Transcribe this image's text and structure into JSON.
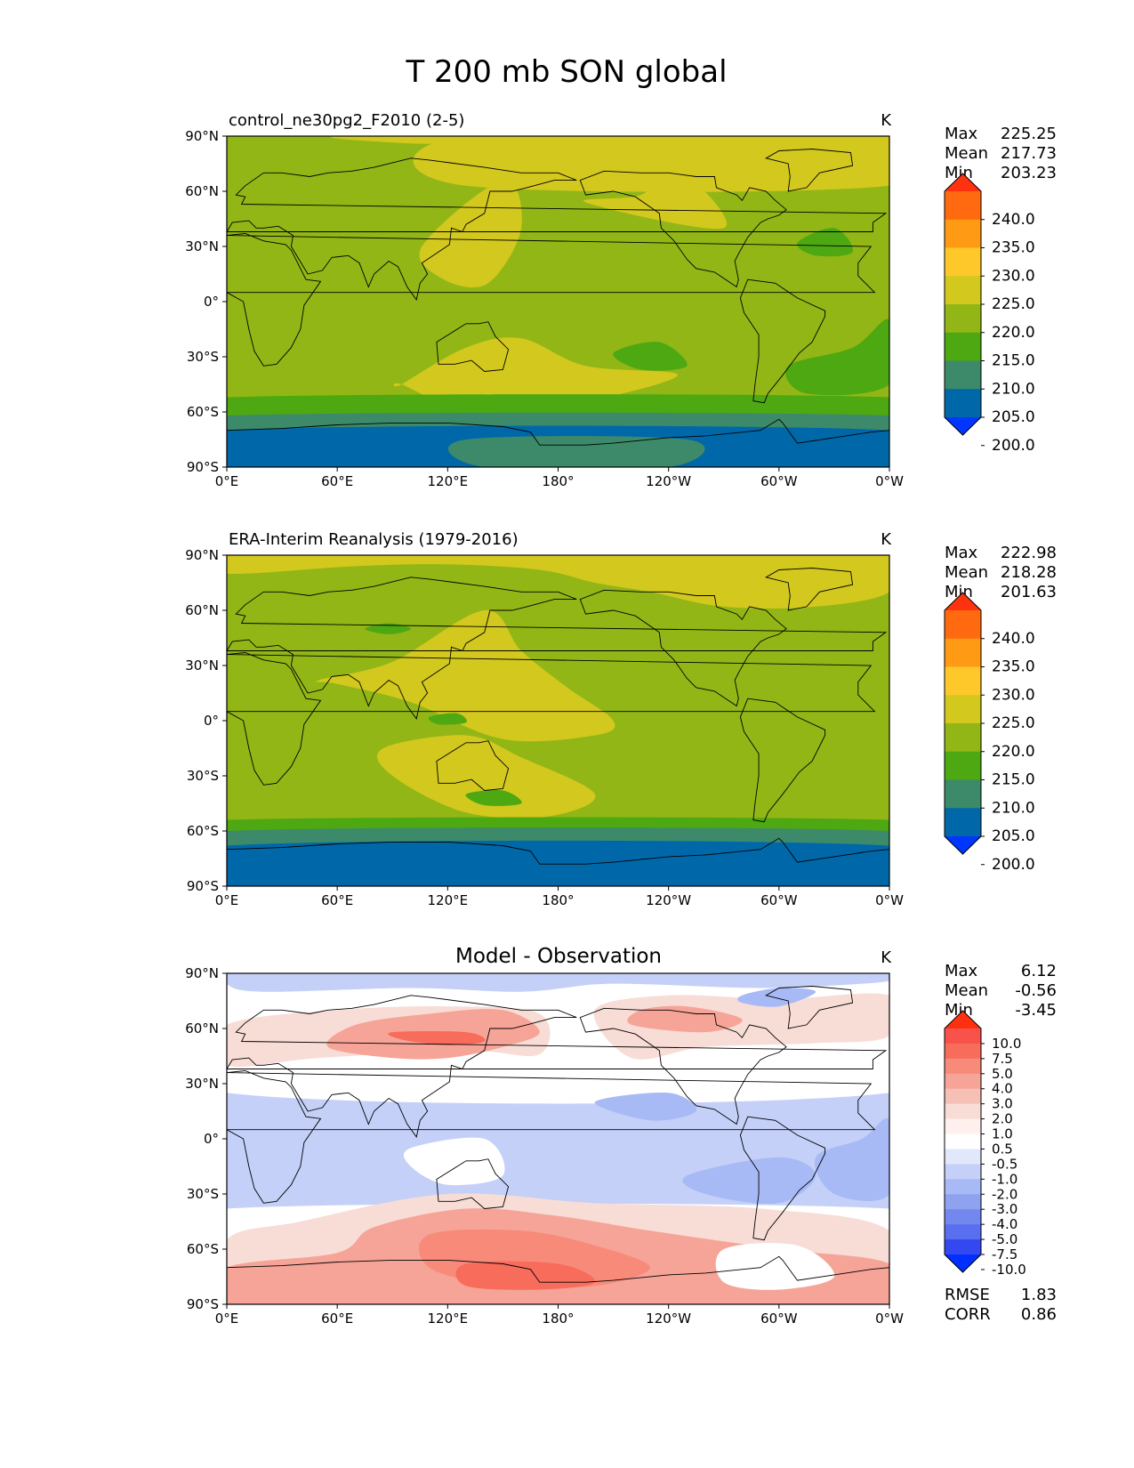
{
  "figure": {
    "title": "T 200 mb SON global"
  },
  "chart_data": [
    {
      "type": "heatmap",
      "panel": "test",
      "title": "control_ne30pg2_F2010 (2-5)",
      "units": "K",
      "stats": [
        {
          "label": "Max",
          "value": "225.25"
        },
        {
          "label": "Mean",
          "value": "217.73"
        },
        {
          "label": "Min",
          "value": "203.23"
        }
      ],
      "xlim": [
        0,
        360
      ],
      "ylim": [
        -90,
        90
      ],
      "xticks": [
        "0°E",
        "60°E",
        "120°E",
        "180°",
        "120°W",
        "60°W",
        "0°W"
      ],
      "yticks": [
        "90°N",
        "60°N",
        "30°N",
        "0°",
        "30°S",
        "60°S",
        "90°S"
      ],
      "colorbar": {
        "levels": [
          "240.0",
          "235.0",
          "230.0",
          "225.0",
          "220.0",
          "215.0",
          "210.0",
          "205.0",
          "200.0"
        ],
        "colors": [
          "#ff3210",
          "#ff6a10",
          "#ff9a14",
          "#ffc82a",
          "#d2c81e",
          "#92b616",
          "#4da812",
          "#3c8a6a",
          "#0068a8",
          "#0036ff"
        ],
        "extend": "both"
      },
      "background": "#92b616",
      "fields": [
        {
          "color": "#d2c81e",
          "lon": [
            130,
            360,
            360,
            130
          ],
          "lat": [
            63,
            63,
            90,
            90
          ]
        },
        {
          "color": "#d2c81e",
          "lon": [
            62,
            100,
            140,
            170,
            200,
            210,
            230
          ],
          "lat": [
            90,
            86,
            86,
            84,
            84,
            88,
            90
          ]
        },
        {
          "color": "#d2c81e",
          "lon": [
            195,
            225,
            245,
            270
          ],
          "lat": [
            54,
            58,
            72,
            40
          ]
        },
        {
          "color": "#d2c81e",
          "lon": [
            106,
            150,
            160,
            142,
            118
          ],
          "lat": [
            30,
            66,
            40,
            10,
            12
          ]
        },
        {
          "color": "#d2c81e",
          "lon": [
            95,
            130,
            160,
            195,
            245,
            190,
            130,
            95
          ],
          "lat": [
            -45,
            -25,
            -20,
            -35,
            -40,
            -55,
            -58,
            -45
          ]
        },
        {
          "color": "#ffc82a",
          "lon": [
            137,
            142,
            147,
            142
          ],
          "lat": [
            -52,
            -50,
            -52,
            -54
          ]
        },
        {
          "color": "#4da812",
          "lon": [
            310,
            330,
            340,
            320
          ],
          "lat": [
            32,
            40,
            27,
            25
          ]
        },
        {
          "color": "#4da812",
          "lon": [
            210,
            235,
            250,
            225
          ],
          "lat": [
            -28,
            -22,
            -35,
            -37
          ]
        },
        {
          "color": "#4da812",
          "lon": [
            305,
            340,
            360,
            360,
            315
          ],
          "lat": [
            -35,
            -25,
            -10,
            -45,
            -50
          ]
        },
        {
          "color": "#4da812",
          "lon": [
            0,
            360,
            360,
            0
          ],
          "lat": [
            -52,
            -52,
            -65,
            -65
          ]
        },
        {
          "color": "#3c8a6a",
          "lon": [
            0,
            360,
            360,
            0
          ],
          "lat": [
            -62,
            -62,
            -75,
            -75
          ]
        },
        {
          "color": "#0068a8",
          "lon": [
            0,
            360,
            360,
            0
          ],
          "lat": [
            -70,
            -70,
            -90,
            -90
          ]
        },
        {
          "color": "#3c8a6a",
          "lon": [
            130,
            250,
            240,
            140
          ],
          "lat": [
            -75,
            -75,
            -90,
            -90
          ]
        }
      ]
    },
    {
      "type": "heatmap",
      "panel": "reference",
      "title": "ERA-Interim Reanalysis (1979-2016)",
      "units": "K",
      "stats": [
        {
          "label": "Max",
          "value": "222.98"
        },
        {
          "label": "Mean",
          "value": "218.28"
        },
        {
          "label": "Min",
          "value": "201.63"
        }
      ],
      "xlim": [
        0,
        360
      ],
      "ylim": [
        -90,
        90
      ],
      "xticks": [
        "0°E",
        "60°E",
        "120°E",
        "180°",
        "120°W",
        "60°W",
        "0°W"
      ],
      "yticks": [
        "90°N",
        "60°N",
        "30°N",
        "0°",
        "30°S",
        "60°S",
        "90°S"
      ],
      "colorbar": {
        "levels": [
          "240.0",
          "235.0",
          "230.0",
          "225.0",
          "220.0",
          "215.0",
          "210.0",
          "205.0",
          "200.0"
        ],
        "colors": [
          "#ff3210",
          "#ff6a10",
          "#ff9a14",
          "#ffc82a",
          "#d2c81e",
          "#92b616",
          "#4da812",
          "#3c8a6a",
          "#0068a8",
          "#0036ff"
        ],
        "extend": "both"
      },
      "background": "#92b616",
      "fields": [
        {
          "color": "#d2c81e",
          "lon": [
            0,
            70,
            120,
            170,
            200,
            230,
            270,
            320,
            360,
            360,
            0
          ],
          "lat": [
            80,
            84,
            85,
            82,
            75,
            70,
            62,
            62,
            70,
            90,
            90
          ]
        },
        {
          "color": "#d2c81e",
          "lon": [
            50,
            90,
            140,
            160,
            185,
            210,
            200,
            150,
            100,
            60
          ],
          "lat": [
            22,
            32,
            60,
            38,
            18,
            0,
            -8,
            -10,
            10,
            20
          ]
        },
        {
          "color": "#d2c81e",
          "lon": [
            85,
            130,
            160,
            200,
            175,
            130,
            90
          ],
          "lat": [
            -15,
            -8,
            -20,
            -40,
            -52,
            -50,
            -30
          ]
        },
        {
          "color": "#4da812",
          "lon": [
            75,
            88,
            100,
            88
          ],
          "lat": [
            50,
            53,
            50,
            47
          ]
        },
        {
          "color": "#4da812",
          "lon": [
            130,
            150,
            160,
            140
          ],
          "lat": [
            -40,
            -38,
            -45,
            -46
          ]
        },
        {
          "color": "#4da812",
          "lon": [
            110,
            125,
            130,
            115
          ],
          "lat": [
            2,
            4,
            -1,
            -2
          ]
        },
        {
          "color": "#4da812",
          "lon": [
            0,
            360,
            360,
            0
          ],
          "lat": [
            -54,
            -54,
            -66,
            -66
          ]
        },
        {
          "color": "#3c8a6a",
          "lon": [
            0,
            360,
            360,
            0
          ],
          "lat": [
            -60,
            -60,
            -75,
            -75
          ]
        },
        {
          "color": "#0068a8",
          "lon": [
            0,
            360,
            360,
            0
          ],
          "lat": [
            -68,
            -68,
            -90,
            -90
          ]
        }
      ]
    },
    {
      "type": "heatmap",
      "panel": "difference",
      "title": "Model - Observation",
      "units": "K",
      "stats": [
        {
          "label": "Max",
          "value": "6.12"
        },
        {
          "label": "Mean",
          "value": "-0.56"
        },
        {
          "label": "Min",
          "value": "-3.45"
        }
      ],
      "metrics": [
        {
          "label": "RMSE",
          "value": "1.83"
        },
        {
          "label": "CORR",
          "value": "0.86"
        }
      ],
      "xlim": [
        0,
        360
      ],
      "ylim": [
        -90,
        90
      ],
      "xticks": [
        "0°E",
        "60°E",
        "120°E",
        "180°",
        "120°W",
        "60°W",
        "0°W"
      ],
      "yticks": [
        "90°N",
        "60°N",
        "30°N",
        "0°",
        "30°S",
        "60°S",
        "90°S"
      ],
      "colorbar": {
        "levels": [
          "10.0",
          "7.5",
          "5.0",
          "4.0",
          "3.0",
          "2.0",
          "1.0",
          "0.5",
          "-0.5",
          "-1.0",
          "-2.0",
          "-3.0",
          "-4.0",
          "-5.0",
          "-7.5",
          "-10.0"
        ],
        "colors": [
          "#ff3010",
          "#f8524a",
          "#f86c5c",
          "#f88a7a",
          "#f6a498",
          "#f6c0b6",
          "#f8dcd6",
          "#fff0ee",
          "#ffffff",
          "#e2e8fc",
          "#c4d0f8",
          "#a8baf6",
          "#8ea2f0",
          "#7288ee",
          "#5a6ef0",
          "#3448f2",
          "#0030ff"
        ],
        "extend": "both"
      },
      "background": "#c4d0f8",
      "fields": [
        {
          "color": "#ffffff",
          "lon": [
            0,
            360,
            360,
            0
          ],
          "lat": [
            72,
            72,
            90,
            90
          ]
        },
        {
          "color": "#c4d0f8",
          "lon": [
            20,
            100,
            160,
            200,
            230,
            290,
            340,
            360,
            360,
            0,
            0
          ],
          "lat": [
            80,
            82,
            80,
            84,
            84,
            82,
            84,
            86,
            90,
            90,
            84
          ]
        },
        {
          "color": "#ffffff",
          "lon": [
            0,
            360,
            360,
            0
          ],
          "lat": [
            25,
            25,
            72,
            72
          ]
        },
        {
          "color": "#f8dcd6",
          "lon": [
            0,
            50,
            130,
            170,
            170,
            120,
            60,
            0
          ],
          "lat": [
            40,
            44,
            48,
            46,
            68,
            72,
            70,
            62
          ]
        },
        {
          "color": "#f6a498",
          "lon": [
            55,
            90,
            120,
            150,
            170,
            150,
            110,
            70
          ],
          "lat": [
            50,
            44,
            44,
            50,
            58,
            70,
            68,
            62
          ]
        },
        {
          "color": "#f86c5c",
          "lon": [
            90,
            130,
            140,
            120,
            95
          ],
          "lat": [
            58,
            58,
            53,
            51,
            54
          ]
        },
        {
          "color": "#f8dcd6",
          "lon": [
            220,
            260,
            320,
            360,
            360,
            300,
            240,
            200
          ],
          "lat": [
            44,
            50,
            52,
            56,
            78,
            76,
            78,
            70
          ]
        },
        {
          "color": "#f6a498",
          "lon": [
            220,
            260,
            280,
            250,
            225
          ],
          "lat": [
            62,
            58,
            65,
            72,
            70
          ]
        },
        {
          "color": "#a8baf6",
          "lon": [
            280,
            300,
            320,
            300,
            280
          ],
          "lat": [
            78,
            82,
            80,
            72,
            74
          ]
        },
        {
          "color": "#a8baf6",
          "lon": [
            250,
            300,
            320,
            300,
            260
          ],
          "lat": [
            -20,
            -10,
            -20,
            -35,
            -30
          ]
        },
        {
          "color": "#a8baf6",
          "lon": [
            320,
            345,
            360,
            360,
            330
          ],
          "lat": [
            -10,
            0,
            10,
            -30,
            -30
          ]
        },
        {
          "color": "#a8baf6",
          "lon": [
            200,
            240,
            255,
            230
          ],
          "lat": [
            20,
            25,
            15,
            10
          ]
        },
        {
          "color": "#ffffff",
          "lon": [
            100,
            140,
            150,
            120,
            100
          ],
          "lat": [
            -5,
            0,
            -20,
            -25,
            -15
          ]
        },
        {
          "color": "#ffffff",
          "lon": [
            0,
            360,
            360,
            0
          ],
          "lat": [
            -38,
            -38,
            -60,
            -60
          ]
        },
        {
          "color": "#f8dcd6",
          "lon": [
            40,
            120,
            200,
            290,
            360,
            360,
            0,
            0
          ],
          "lat": [
            -45,
            -30,
            -35,
            -38,
            -50,
            -90,
            -90,
            -55
          ]
        },
        {
          "color": "#f6a498",
          "lon": [
            80,
            130,
            180,
            230,
            300,
            360,
            360,
            0,
            0,
            60
          ],
          "lat": [
            -48,
            -38,
            -42,
            -50,
            -60,
            -68,
            -90,
            -90,
            -70,
            -62
          ]
        },
        {
          "color": "#f88a7a",
          "lon": [
            110,
            160,
            200,
            230,
            200,
            150,
            110
          ],
          "lat": [
            -52,
            -50,
            -58,
            -70,
            -80,
            -80,
            -70
          ]
        },
        {
          "color": "#f86c5c",
          "lon": [
            130,
            180,
            200,
            170,
            130
          ],
          "lat": [
            -68,
            -68,
            -78,
            -82,
            -80
          ]
        },
        {
          "color": "#ffffff",
          "lon": [
            270,
            310,
            330,
            300,
            270
          ],
          "lat": [
            -60,
            -58,
            -75,
            -82,
            -78
          ]
        }
      ]
    }
  ]
}
